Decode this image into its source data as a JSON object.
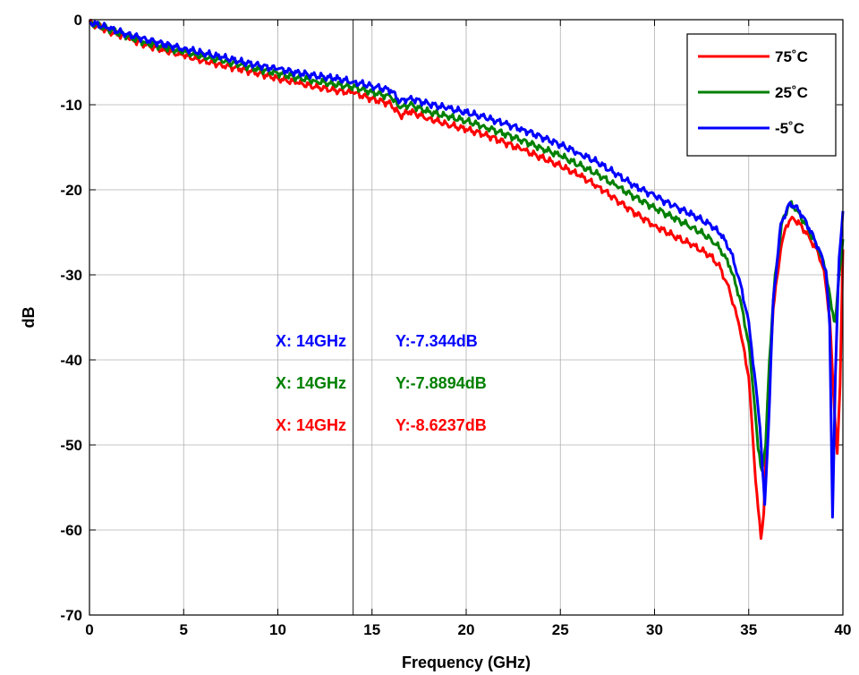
{
  "chart_data": {
    "type": "line",
    "title": "",
    "xlabel": "Frequency (GHz)",
    "ylabel": "dB",
    "xlim": [
      0,
      40
    ],
    "ylim": [
      -70,
      0
    ],
    "xticks": [
      0,
      5,
      10,
      15,
      20,
      25,
      30,
      35,
      40
    ],
    "yticks": [
      0,
      -10,
      -20,
      -30,
      -40,
      -50,
      -60,
      -70
    ],
    "grid": true,
    "legend_position": "top-right",
    "series": [
      {
        "name": "75˚C",
        "color": "#ff0000",
        "points": [
          [
            0,
            -0.3
          ],
          [
            1,
            -1.3
          ],
          [
            2,
            -2.1
          ],
          [
            3,
            -3.0
          ],
          [
            4,
            -3.6
          ],
          [
            5,
            -4.2
          ],
          [
            6,
            -4.8
          ],
          [
            7,
            -5.3
          ],
          [
            8,
            -5.8
          ],
          [
            9,
            -6.3
          ],
          [
            10,
            -6.9
          ],
          [
            11,
            -7.4
          ],
          [
            12,
            -7.9
          ],
          [
            13,
            -8.3
          ],
          [
            14,
            -8.6
          ],
          [
            15,
            -9.3
          ],
          [
            16,
            -9.9
          ],
          [
            16.5,
            -11.3
          ],
          [
            17,
            -10.8
          ],
          [
            18,
            -11.6
          ],
          [
            19,
            -12.3
          ],
          [
            20,
            -12.9
          ],
          [
            21,
            -13.5
          ],
          [
            22,
            -14.4
          ],
          [
            23,
            -15.3
          ],
          [
            24,
            -16.2
          ],
          [
            25,
            -17.2
          ],
          [
            26,
            -18.3
          ],
          [
            27,
            -19.6
          ],
          [
            28,
            -21.2
          ],
          [
            29,
            -22.8
          ],
          [
            30,
            -24.2
          ],
          [
            31,
            -25.4
          ],
          [
            32,
            -26.5
          ],
          [
            33,
            -27.8
          ],
          [
            33.5,
            -29.2
          ],
          [
            34,
            -32.0
          ],
          [
            34.5,
            -36.0
          ],
          [
            35,
            -42.0
          ],
          [
            35.3,
            -52.0
          ],
          [
            35.5,
            -57.5
          ],
          [
            35.65,
            -61.0
          ],
          [
            35.8,
            -58.0
          ],
          [
            36.0,
            -45.0
          ],
          [
            36.3,
            -34.0
          ],
          [
            36.7,
            -27.0
          ],
          [
            37.0,
            -24.2
          ],
          [
            37.3,
            -23.2
          ],
          [
            37.7,
            -24.0
          ],
          [
            38.2,
            -25.5
          ],
          [
            38.7,
            -27.5
          ],
          [
            39.0,
            -29.5
          ],
          [
            39.3,
            -35.0
          ],
          [
            39.5,
            -44.0
          ],
          [
            39.7,
            -51.0
          ],
          [
            39.85,
            -43.0
          ],
          [
            40.0,
            -27.0
          ]
        ]
      },
      {
        "name": "25˚C",
        "color": "#008000",
        "points": [
          [
            0,
            -0.3
          ],
          [
            1,
            -1.1
          ],
          [
            2,
            -1.9
          ],
          [
            3,
            -2.7
          ],
          [
            4,
            -3.3
          ],
          [
            5,
            -3.8
          ],
          [
            6,
            -4.3
          ],
          [
            7,
            -4.8
          ],
          [
            8,
            -5.3
          ],
          [
            9,
            -5.8
          ],
          [
            10,
            -6.3
          ],
          [
            11,
            -6.8
          ],
          [
            12,
            -7.2
          ],
          [
            13,
            -7.6
          ],
          [
            14,
            -7.9
          ],
          [
            15,
            -8.5
          ],
          [
            16,
            -9.1
          ],
          [
            16.5,
            -10.4
          ],
          [
            17,
            -10.0
          ],
          [
            18,
            -10.8
          ],
          [
            19,
            -11.4
          ],
          [
            20,
            -11.9
          ],
          [
            21,
            -12.6
          ],
          [
            22,
            -13.4
          ],
          [
            23,
            -14.2
          ],
          [
            24,
            -15.1
          ],
          [
            25,
            -16.0
          ],
          [
            26,
            -17.1
          ],
          [
            27,
            -18.2
          ],
          [
            28,
            -19.6
          ],
          [
            29,
            -20.9
          ],
          [
            30,
            -22.1
          ],
          [
            31,
            -23.3
          ],
          [
            32,
            -24.4
          ],
          [
            33,
            -25.8
          ],
          [
            33.5,
            -27.0
          ],
          [
            34,
            -29.0
          ],
          [
            34.5,
            -32.5
          ],
          [
            35,
            -38.0
          ],
          [
            35.3,
            -45.0
          ],
          [
            35.5,
            -50.5
          ],
          [
            35.7,
            -53.0
          ],
          [
            35.9,
            -50.0
          ],
          [
            36.1,
            -40.0
          ],
          [
            36.4,
            -30.0
          ],
          [
            36.8,
            -23.5
          ],
          [
            37.2,
            -21.5
          ],
          [
            37.6,
            -22.5
          ],
          [
            38.2,
            -24.8
          ],
          [
            38.7,
            -27.0
          ],
          [
            39.1,
            -29.5
          ],
          [
            39.4,
            -34.0
          ],
          [
            39.6,
            -35.5
          ],
          [
            39.8,
            -30.0
          ],
          [
            40.0,
            -25.8
          ]
        ]
      },
      {
        "name": "-5˚C",
        "color": "#0000ff",
        "points": [
          [
            0,
            -0.3
          ],
          [
            1,
            -1.0
          ],
          [
            2,
            -1.7
          ],
          [
            3,
            -2.3
          ],
          [
            4,
            -2.9
          ],
          [
            5,
            -3.4
          ],
          [
            6,
            -3.9
          ],
          [
            7,
            -4.4
          ],
          [
            8,
            -4.9
          ],
          [
            9,
            -5.4
          ],
          [
            10,
            -5.8
          ],
          [
            11,
            -6.2
          ],
          [
            12,
            -6.6
          ],
          [
            13,
            -6.9
          ],
          [
            14,
            -7.3
          ],
          [
            15,
            -7.8
          ],
          [
            16,
            -8.3
          ],
          [
            16.5,
            -9.6
          ],
          [
            17,
            -9.2
          ],
          [
            18,
            -9.9
          ],
          [
            19,
            -10.4
          ],
          [
            20,
            -10.9
          ],
          [
            21,
            -11.5
          ],
          [
            22,
            -12.2
          ],
          [
            23,
            -12.9
          ],
          [
            24,
            -13.8
          ],
          [
            25,
            -14.7
          ],
          [
            26,
            -15.7
          ],
          [
            27,
            -16.8
          ],
          [
            28,
            -18.2
          ],
          [
            29,
            -19.6
          ],
          [
            30,
            -20.7
          ],
          [
            31,
            -21.9
          ],
          [
            32,
            -22.9
          ],
          [
            33,
            -24.2
          ],
          [
            33.5,
            -25.2
          ],
          [
            34,
            -27.0
          ],
          [
            34.5,
            -30.5
          ],
          [
            35,
            -35.5
          ],
          [
            35.3,
            -41.5
          ],
          [
            35.6,
            -48.0
          ],
          [
            35.85,
            -57.0
          ],
          [
            36.05,
            -48.0
          ],
          [
            36.3,
            -33.0
          ],
          [
            36.7,
            -24.0
          ],
          [
            37.2,
            -21.5
          ],
          [
            37.7,
            -22.5
          ],
          [
            38.2,
            -24.5
          ],
          [
            38.7,
            -26.8
          ],
          [
            39.1,
            -29.5
          ],
          [
            39.3,
            -36.0
          ],
          [
            39.45,
            -58.5
          ],
          [
            39.6,
            -42.0
          ],
          [
            39.8,
            -28.0
          ],
          [
            40.0,
            -22.5
          ]
        ]
      }
    ],
    "annotations": [
      {
        "text_x": "X: 14GHz",
        "text_y": "Y:-7.344dB",
        "color": "#0000ff"
      },
      {
        "text_x": "X: 14GHz",
        "text_y": "Y:-7.8894dB",
        "color": "#008000"
      },
      {
        "text_x": "X: 14GHz",
        "text_y": "Y:-8.6237dB",
        "color": "#ff0000"
      }
    ],
    "marker_line_x": 14
  }
}
